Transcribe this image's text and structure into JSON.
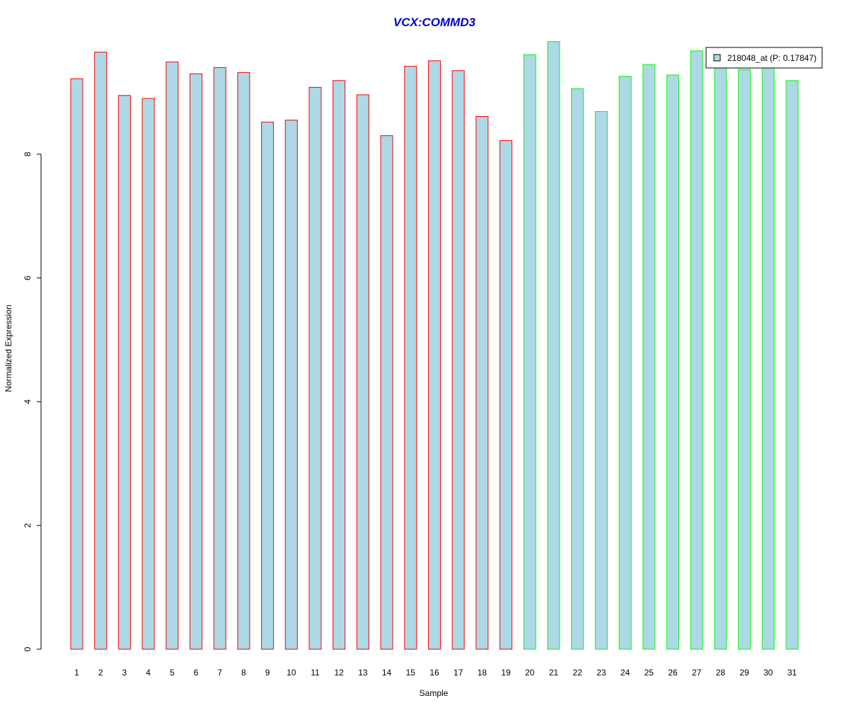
{
  "chart_data": {
    "type": "bar",
    "title": "VCX:COMMD3",
    "xlabel": "Sample",
    "ylabel": "Normalized Expression",
    "ylim": [
      0,
      9.8
    ],
    "yticks": [
      0,
      2,
      4,
      6,
      8
    ],
    "grid": false,
    "legend": {
      "label": "218048_at (P: 0.17847)",
      "placement": "top-right"
    },
    "categories": [
      "1",
      "2",
      "3",
      "4",
      "5",
      "6",
      "7",
      "8",
      "9",
      "10",
      "11",
      "12",
      "13",
      "14",
      "15",
      "16",
      "17",
      "18",
      "19",
      "20",
      "21",
      "22",
      "23",
      "24",
      "25",
      "26",
      "27",
      "28",
      "29",
      "30",
      "31"
    ],
    "series": [
      {
        "name": "218048_at (P: 0.17847)",
        "values": [
          9.22,
          9.65,
          8.95,
          8.9,
          9.49,
          9.3,
          9.4,
          9.32,
          8.52,
          8.55,
          9.08,
          9.19,
          8.96,
          8.3,
          9.42,
          9.51,
          9.35,
          8.61,
          8.22,
          9.61,
          9.82,
          9.06,
          8.69,
          9.26,
          9.45,
          9.28,
          9.67,
          9.4,
          9.37,
          9.45,
          9.19
        ]
      }
    ],
    "bar_groups": [
      1,
      1,
      1,
      1,
      1,
      1,
      1,
      1,
      1,
      1,
      1,
      1,
      1,
      1,
      1,
      1,
      1,
      1,
      1,
      2,
      2,
      2,
      2,
      2,
      2,
      2,
      2,
      2,
      2,
      2,
      2
    ]
  },
  "colors": {
    "bar_fill": "#add8e6",
    "group1_border": "#ff0000",
    "group2_border": "#00ff00",
    "title": "#0000cd",
    "axis": "#000000"
  }
}
